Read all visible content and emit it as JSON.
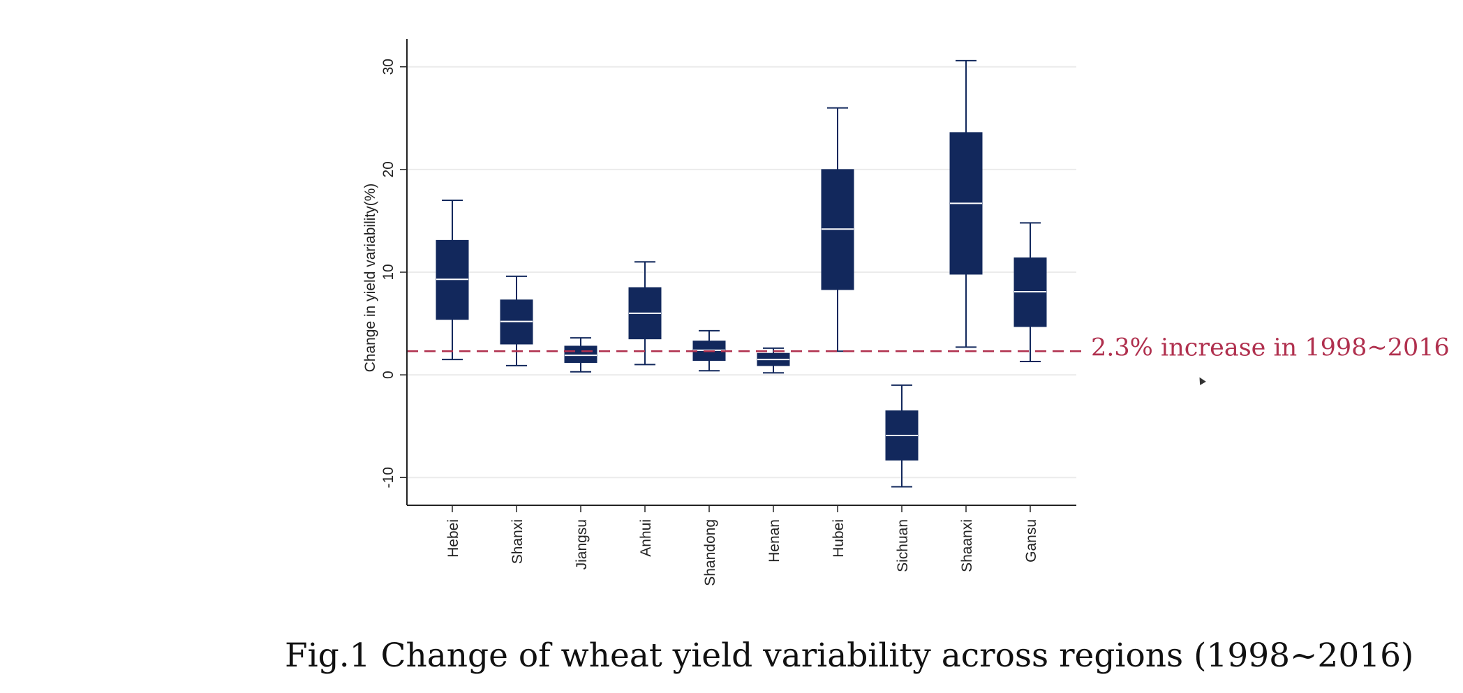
{
  "chart_data": {
    "type": "box",
    "title": "",
    "xlabel": "",
    "ylabel": "Change in yield variability(%)",
    "ylim": [
      -12.7,
      32.7
    ],
    "yticks": [
      -10,
      0,
      10,
      20,
      30
    ],
    "grid": true,
    "categories": [
      "Hebei",
      "Shanxi",
      "Jiangsu",
      "Anhui",
      "Shandong",
      "Henan",
      "Hubei",
      "Sichuan",
      "Shaanxi",
      "Gansu"
    ],
    "boxes": [
      {
        "min": 1.5,
        "q1": 5.4,
        "median": 9.3,
        "q3": 13.1,
        "max": 17.0
      },
      {
        "min": 0.9,
        "q1": 3.0,
        "median": 5.2,
        "q3": 7.3,
        "max": 9.6
      },
      {
        "min": 0.3,
        "q1": 1.2,
        "median": 1.9,
        "q3": 2.8,
        "max": 3.6
      },
      {
        "min": 1.0,
        "q1": 3.5,
        "median": 6.0,
        "q3": 8.5,
        "max": 11.0
      },
      {
        "min": 0.4,
        "q1": 1.4,
        "median": 2.4,
        "q3": 3.3,
        "max": 4.3
      },
      {
        "min": 0.2,
        "q1": 0.9,
        "median": 1.5,
        "q3": 2.1,
        "max": 2.6
      },
      {
        "min": 2.3,
        "q1": 8.3,
        "median": 14.2,
        "q3": 20.0,
        "max": 26.0
      },
      {
        "min": -10.9,
        "q1": -8.3,
        "median": -5.9,
        "q3": -3.5,
        "max": -1.0
      },
      {
        "min": 2.7,
        "q1": 9.8,
        "median": 16.7,
        "q3": 23.6,
        "max": 30.6
      },
      {
        "min": 1.3,
        "q1": 4.7,
        "median": 8.1,
        "q3": 11.4,
        "max": 14.8
      }
    ],
    "reference_line": {
      "value": 2.3,
      "style": "dashed",
      "label": "2.3% increase in 1998~2016"
    },
    "colors": {
      "box": "#12285c",
      "median": "#ffffff",
      "reference": "#b0304e",
      "grid": "#ebebeb",
      "axis": "#222222"
    }
  },
  "caption": "Fig.1  Change of wheat yield variability across regions (1998~2016)"
}
